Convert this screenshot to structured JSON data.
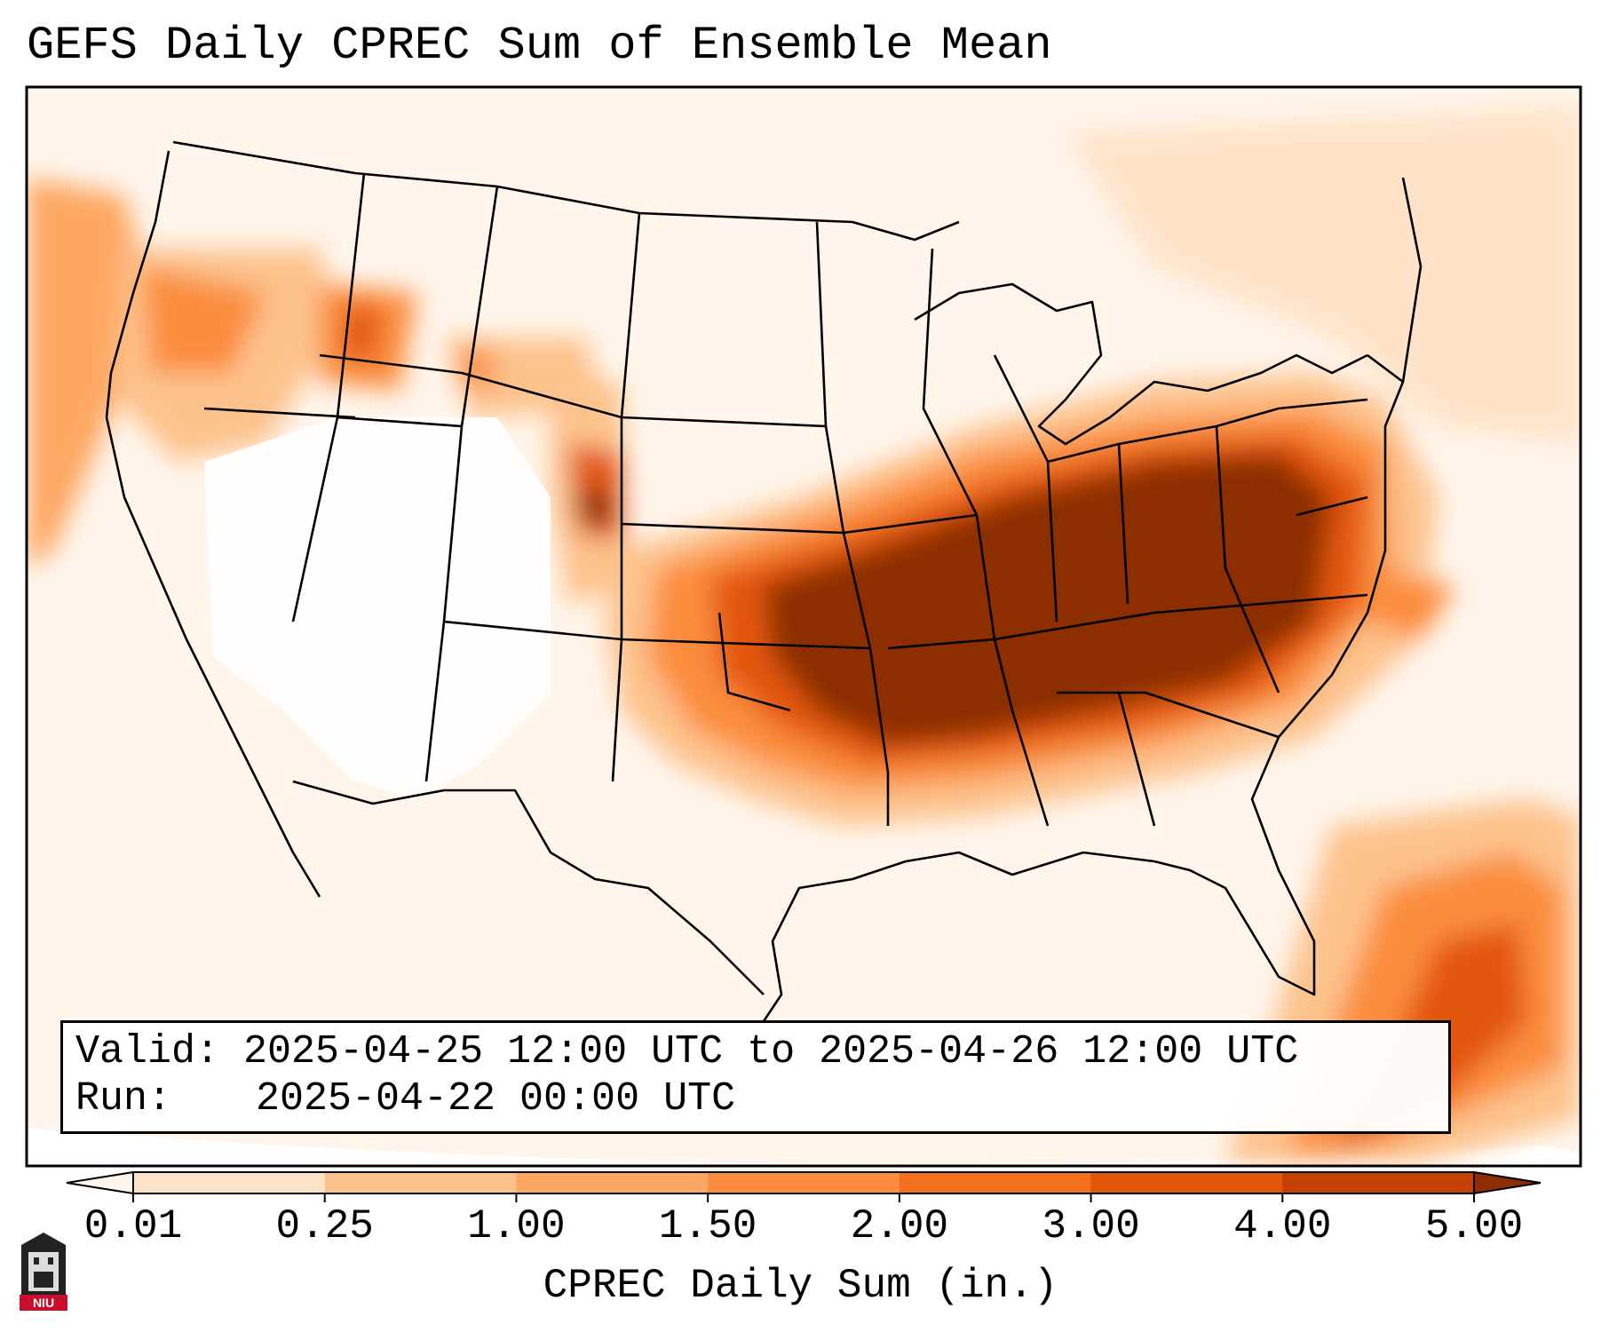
{
  "title": "GEFS Daily CPREC Sum of Ensemble Mean",
  "valid": {
    "label": "Valid:",
    "value": "2025-04-25 12:00 UTC to 2025-04-26 12:00 UTC"
  },
  "run": {
    "label": "Run:",
    "value": "2025-04-22 00:00 UTC"
  },
  "colorbar": {
    "label": "CPREC Daily Sum (in.)",
    "ticks": [
      "0.01",
      "0.25",
      "1.00",
      "1.50",
      "2.00",
      "3.00",
      "4.00",
      "5.00"
    ],
    "colors": [
      "#fff5eb",
      "#fee3c8",
      "#fdc28c",
      "#fda762",
      "#fb8d3d",
      "#f2701d",
      "#e25609",
      "#c44103",
      "#8c2d04"
    ],
    "extend": "both"
  },
  "logo": {
    "text": "NIU"
  },
  "map": {
    "projection": "lambert-conformal",
    "region": "CONUS",
    "field": "CPREC daily sum (in.)",
    "heaviest_area": "Southern Plains, Mid-Mississippi and Tennessee Valleys, Ohio Valley, Southeast"
  }
}
